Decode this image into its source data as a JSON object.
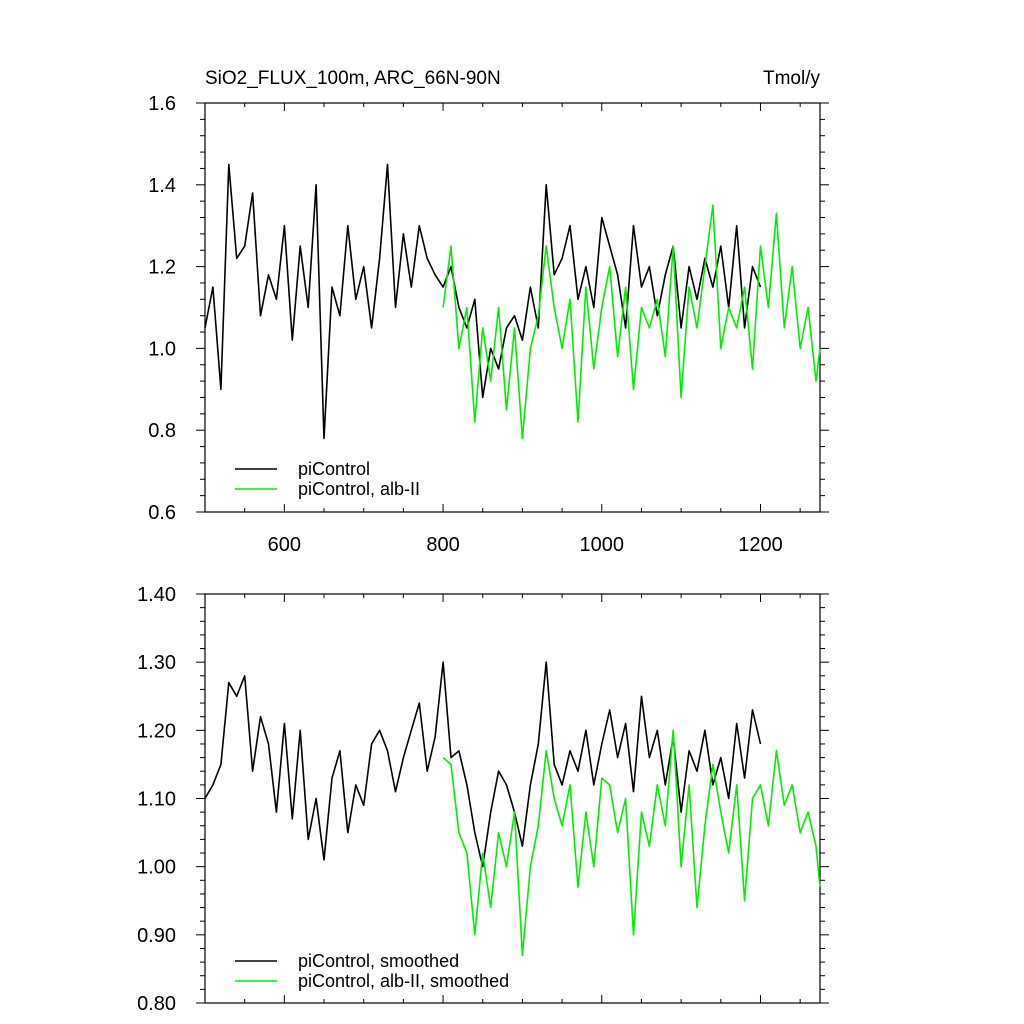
{
  "header": {
    "title": "SiO2_FLUX_100m, ARC_66N-90N",
    "units": "Tmol/y"
  },
  "colors": {
    "background": "#ffffff",
    "axis": "#000000",
    "piControl": "#000000",
    "alb": "#00ee00"
  },
  "chart_data": [
    {
      "type": "line",
      "title": "SiO2_FLUX_100m, ARC_66N-90N",
      "units": "Tmol/y",
      "xlabel": "",
      "ylabel": "",
      "xlim": [
        500,
        1275
      ],
      "ylim": [
        0.6,
        1.6
      ],
      "x_ticks": [
        600,
        800,
        1000,
        1200
      ],
      "x_tick_labels": [
        "600",
        "800",
        "1000",
        "1200"
      ],
      "y_ticks": [
        0.6,
        0.8,
        1.0,
        1.2,
        1.4,
        1.6
      ],
      "y_tick_labels": [
        "0.6",
        "0.8",
        "1.0",
        "1.2",
        "1.4",
        "1.6"
      ],
      "grid": false,
      "legend_position": "bottom-left",
      "series": [
        {
          "name": "piControl",
          "color": "#000000",
          "x": [
            500,
            510,
            520,
            530,
            540,
            550,
            560,
            570,
            580,
            590,
            600,
            610,
            620,
            630,
            640,
            650,
            660,
            670,
            680,
            690,
            700,
            710,
            720,
            730,
            740,
            750,
            760,
            770,
            780,
            790,
            800,
            810,
            820,
            830,
            840,
            850,
            860,
            870,
            880,
            890,
            900,
            910,
            920,
            930,
            940,
            950,
            960,
            970,
            980,
            990,
            1000,
            1010,
            1020,
            1030,
            1040,
            1050,
            1060,
            1070,
            1080,
            1090,
            1100,
            1110,
            1120,
            1130,
            1140,
            1150,
            1160,
            1170,
            1180,
            1190,
            1200
          ],
          "values": [
            1.05,
            1.15,
            0.9,
            1.45,
            1.22,
            1.25,
            1.38,
            1.08,
            1.18,
            1.12,
            1.3,
            1.02,
            1.25,
            1.1,
            1.4,
            0.78,
            1.15,
            1.08,
            1.3,
            1.12,
            1.2,
            1.05,
            1.22,
            1.45,
            1.1,
            1.28,
            1.15,
            1.3,
            1.22,
            1.18,
            1.15,
            1.2,
            1.1,
            1.05,
            1.12,
            0.88,
            1.0,
            0.95,
            1.05,
            1.08,
            1.02,
            1.15,
            1.05,
            1.4,
            1.18,
            1.22,
            1.3,
            1.12,
            1.2,
            1.1,
            1.32,
            1.25,
            1.18,
            1.05,
            1.3,
            1.15,
            1.2,
            1.08,
            1.18,
            1.25,
            1.05,
            1.2,
            1.12,
            1.22,
            1.15,
            1.25,
            1.1,
            1.3,
            1.05,
            1.2,
            1.15
          ]
        },
        {
          "name": "piControl, alb-II",
          "color": "#00ee00",
          "x": [
            800,
            810,
            820,
            830,
            840,
            850,
            860,
            870,
            880,
            890,
            900,
            910,
            920,
            930,
            940,
            950,
            960,
            970,
            980,
            990,
            1000,
            1010,
            1020,
            1030,
            1040,
            1050,
            1060,
            1070,
            1080,
            1090,
            1100,
            1110,
            1120,
            1130,
            1140,
            1150,
            1160,
            1170,
            1180,
            1190,
            1200,
            1210,
            1220,
            1230,
            1240,
            1250,
            1260,
            1270,
            1275
          ],
          "values": [
            1.1,
            1.25,
            1.0,
            1.1,
            0.82,
            1.05,
            0.92,
            1.1,
            0.85,
            1.05,
            0.78,
            1.0,
            1.08,
            1.25,
            1.1,
            1.0,
            1.12,
            0.82,
            1.15,
            0.95,
            1.1,
            1.2,
            0.98,
            1.15,
            0.9,
            1.1,
            1.05,
            1.12,
            0.98,
            1.25,
            0.88,
            1.15,
            1.05,
            1.2,
            1.35,
            1.0,
            1.1,
            1.05,
            1.15,
            0.95,
            1.25,
            1.1,
            1.33,
            1.05,
            1.2,
            1.0,
            1.1,
            0.92,
            1.0
          ]
        }
      ]
    },
    {
      "type": "line",
      "title": "",
      "xlabel": "",
      "ylabel": "",
      "xlim": [
        500,
        1275
      ],
      "ylim": [
        0.8,
        1.4
      ],
      "x_ticks": [
        600,
        800,
        1000,
        1200
      ],
      "x_tick_labels": [],
      "y_ticks": [
        0.8,
        0.9,
        1.0,
        1.1,
        1.2,
        1.3,
        1.4
      ],
      "y_tick_labels": [
        "0.80",
        "0.90",
        "1.00",
        "1.10",
        "1.20",
        "1.30",
        "1.40"
      ],
      "grid": false,
      "legend_position": "bottom-left",
      "series": [
        {
          "name": "piControl, smoothed",
          "color": "#000000",
          "x": [
            500,
            510,
            520,
            530,
            540,
            550,
            560,
            570,
            580,
            590,
            600,
            610,
            620,
            630,
            640,
            650,
            660,
            670,
            680,
            690,
            700,
            710,
            720,
            730,
            740,
            750,
            760,
            770,
            780,
            790,
            800,
            810,
            820,
            830,
            840,
            850,
            860,
            870,
            880,
            890,
            900,
            910,
            920,
            930,
            940,
            950,
            960,
            970,
            980,
            990,
            1000,
            1010,
            1020,
            1030,
            1040,
            1050,
            1060,
            1070,
            1080,
            1090,
            1100,
            1110,
            1120,
            1130,
            1140,
            1150,
            1160,
            1170,
            1180,
            1190,
            1200
          ],
          "values": [
            1.1,
            1.12,
            1.15,
            1.27,
            1.25,
            1.28,
            1.14,
            1.22,
            1.18,
            1.08,
            1.21,
            1.07,
            1.2,
            1.04,
            1.1,
            1.01,
            1.13,
            1.17,
            1.05,
            1.12,
            1.09,
            1.18,
            1.2,
            1.17,
            1.11,
            1.16,
            1.2,
            1.24,
            1.14,
            1.19,
            1.3,
            1.16,
            1.17,
            1.12,
            1.05,
            1.0,
            1.08,
            1.14,
            1.12,
            1.08,
            1.03,
            1.12,
            1.18,
            1.3,
            1.15,
            1.12,
            1.17,
            1.14,
            1.2,
            1.12,
            1.18,
            1.23,
            1.16,
            1.21,
            1.11,
            1.25,
            1.16,
            1.2,
            1.12,
            1.19,
            1.08,
            1.17,
            1.14,
            1.2,
            1.12,
            1.16,
            1.1,
            1.21,
            1.13,
            1.23,
            1.18
          ]
        },
        {
          "name": "piControl, alb-II, smoothed",
          "color": "#00ee00",
          "x": [
            800,
            810,
            820,
            830,
            840,
            850,
            860,
            870,
            880,
            890,
            900,
            910,
            920,
            930,
            940,
            950,
            960,
            970,
            980,
            990,
            1000,
            1010,
            1020,
            1030,
            1040,
            1050,
            1060,
            1070,
            1080,
            1090,
            1100,
            1110,
            1120,
            1130,
            1140,
            1150,
            1160,
            1170,
            1180,
            1190,
            1200,
            1210,
            1220,
            1230,
            1240,
            1250,
            1260,
            1270,
            1275
          ],
          "values": [
            1.16,
            1.15,
            1.05,
            1.02,
            0.9,
            1.02,
            0.94,
            1.05,
            1.0,
            1.08,
            0.87,
            1.0,
            1.06,
            1.17,
            1.1,
            1.06,
            1.12,
            0.97,
            1.08,
            1.0,
            1.13,
            1.12,
            1.05,
            1.1,
            0.9,
            1.08,
            1.03,
            1.12,
            1.06,
            1.2,
            1.0,
            1.12,
            0.94,
            1.06,
            1.15,
            1.08,
            1.02,
            1.12,
            0.95,
            1.1,
            1.12,
            1.06,
            1.17,
            1.09,
            1.12,
            1.05,
            1.08,
            1.03,
            0.97
          ]
        }
      ]
    }
  ]
}
